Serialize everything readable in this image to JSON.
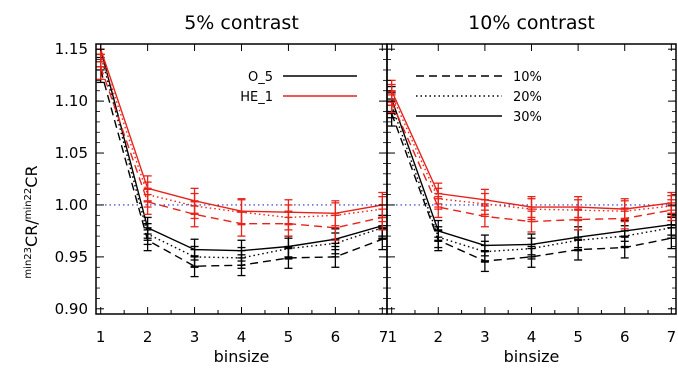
{
  "chart_data": {
    "type": "line",
    "ylabel": {
      "sup1": "min23",
      "main1": "CR",
      "sep": "/",
      "sup2": "min22",
      "main2": "CR"
    },
    "xlabel": "binsize",
    "x": [
      1,
      2,
      3,
      4,
      5,
      6,
      7
    ],
    "xticks": [
      "1",
      "2",
      "3",
      "4",
      "5",
      "6",
      "7"
    ],
    "yticks": [
      "0.90",
      "0.95",
      "1.00",
      "1.05",
      "1.10",
      "1.15"
    ],
    "ylim": [
      0.895,
      1.155
    ],
    "xlim": [
      0.9,
      7.1
    ],
    "reference_line": 1.0,
    "colors": {
      "O_5": "#000000",
      "HE_1": "#e8231a",
      "reference": "#2b34c8"
    },
    "legend_instruments": [
      {
        "name": "O_5",
        "color": "#000000"
      },
      {
        "name": "HE_1",
        "color": "#e8231a"
      }
    ],
    "legend_styles": [
      {
        "name": "10%",
        "style": "dashed"
      },
      {
        "name": "20%",
        "style": "dotted"
      },
      {
        "name": "30%",
        "style": "solid"
      }
    ],
    "panels": [
      {
        "title": "5% contrast",
        "series": [
          {
            "instrument": "O_5",
            "style": "solid",
            "values": [
              1.15,
              0.978,
              0.957,
              0.956,
              0.96,
              0.967,
              0.98
            ],
            "errors": [
              0.012,
              0.01,
              0.01,
              0.01,
              0.01,
              0.01,
              0.01
            ]
          },
          {
            "instrument": "O_5",
            "style": "dotted",
            "values": [
              1.145,
              0.972,
              0.95,
              0.949,
              0.958,
              0.963,
              0.978
            ],
            "errors": [
              0.012,
              0.01,
              0.01,
              0.01,
              0.01,
              0.01,
              0.01
            ]
          },
          {
            "instrument": "O_5",
            "style": "dashed",
            "values": [
              1.13,
              0.966,
              0.941,
              0.942,
              0.949,
              0.95,
              0.967
            ],
            "errors": [
              0.012,
              0.01,
              0.01,
              0.01,
              0.01,
              0.01,
              0.01
            ]
          },
          {
            "instrument": "HE_1",
            "style": "solid",
            "values": [
              1.15,
              1.016,
              1.004,
              0.994,
              0.993,
              0.992,
              1.0
            ],
            "errors": [
              0.012,
              0.012,
              0.012,
              0.012,
              0.012,
              0.012,
              0.012
            ]
          },
          {
            "instrument": "HE_1",
            "style": "dotted",
            "values": [
              1.145,
              1.01,
              0.999,
              0.993,
              0.988,
              0.99,
              0.996
            ],
            "errors": [
              0.012,
              0.012,
              0.012,
              0.012,
              0.012,
              0.012,
              0.012
            ]
          },
          {
            "instrument": "HE_1",
            "style": "dashed",
            "values": [
              1.133,
              1.003,
              0.991,
              0.982,
              0.982,
              0.978,
              0.988
            ],
            "errors": [
              0.012,
              0.012,
              0.012,
              0.012,
              0.012,
              0.012,
              0.012
            ]
          }
        ]
      },
      {
        "title": "10% contrast",
        "series": [
          {
            "instrument": "O_5",
            "style": "solid",
            "values": [
              1.102,
              0.975,
              0.961,
              0.962,
              0.969,
              0.975,
              0.981
            ],
            "errors": [
              0.012,
              0.01,
              0.01,
              0.01,
              0.01,
              0.01,
              0.01
            ]
          },
          {
            "instrument": "O_5",
            "style": "dotted",
            "values": [
              1.096,
              0.969,
              0.955,
              0.958,
              0.966,
              0.97,
              0.978
            ],
            "errors": [
              0.012,
              0.01,
              0.01,
              0.01,
              0.01,
              0.01,
              0.01
            ]
          },
          {
            "instrument": "O_5",
            "style": "dashed",
            "values": [
              1.088,
              0.966,
              0.946,
              0.95,
              0.957,
              0.959,
              0.968
            ],
            "errors": [
              0.012,
              0.01,
              0.01,
              0.01,
              0.01,
              0.01,
              0.01
            ]
          },
          {
            "instrument": "HE_1",
            "style": "solid",
            "values": [
              1.11,
              1.011,
              1.005,
              0.998,
              0.998,
              0.996,
              1.002
            ],
            "errors": [
              0.01,
              0.01,
              0.01,
              0.01,
              0.01,
              0.01,
              0.01
            ]
          },
          {
            "instrument": "HE_1",
            "style": "dotted",
            "values": [
              1.106,
              1.006,
              1.001,
              0.996,
              0.995,
              0.994,
              0.999
            ],
            "errors": [
              0.01,
              0.01,
              0.01,
              0.01,
              0.01,
              0.01,
              0.01
            ]
          },
          {
            "instrument": "HE_1",
            "style": "dashed",
            "values": [
              1.099,
              0.998,
              0.989,
              0.984,
              0.986,
              0.987,
              0.995
            ],
            "errors": [
              0.01,
              0.01,
              0.01,
              0.01,
              0.01,
              0.01,
              0.01
            ]
          }
        ]
      }
    ]
  }
}
